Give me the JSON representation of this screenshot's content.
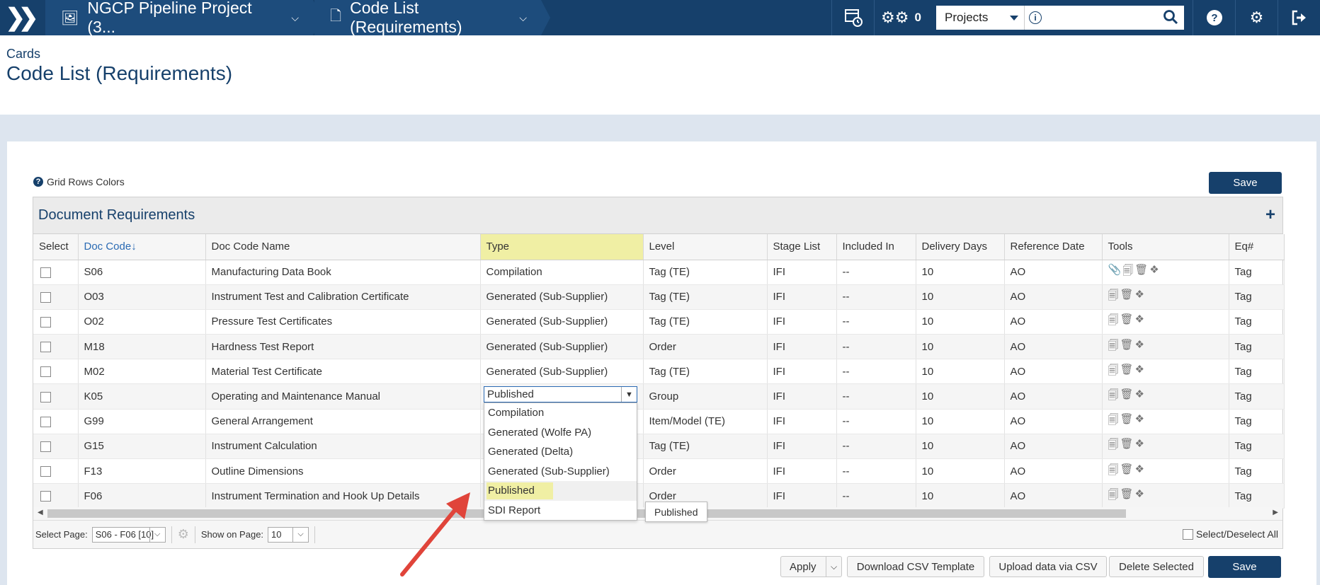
{
  "topbar": {
    "project": "NGCP Pipeline Project (3...",
    "page": "Code List (Requirements)",
    "notif_count": "0",
    "search_scope": "Projects",
    "search_placeholder": ""
  },
  "header": {
    "breadcrumb": "Cards",
    "title": "Code List (Requirements)"
  },
  "toolbar": {
    "grid_colors": "Grid Rows Colors",
    "save_label": "Save"
  },
  "grid": {
    "title": "Document Requirements",
    "columns": [
      "Select",
      "Doc Code↓",
      "Doc Code Name",
      "Type",
      "Level",
      "Stage List",
      "Included In",
      "Delivery Days",
      "Reference Date",
      "Tools",
      "Eq#"
    ],
    "rows": [
      {
        "code": "S06",
        "name": "Manufacturing Data Book",
        "type": "Compilation",
        "level": "Tag (TE)",
        "stage": "IFI",
        "included": "--",
        "days": "10",
        "ref": "AO",
        "eq": "Tag"
      },
      {
        "code": "O03",
        "name": "Instrument Test and Calibration Certificate",
        "type": "Generated (Sub-Supplier)",
        "level": "Tag (TE)",
        "stage": "IFI",
        "included": "--",
        "days": "10",
        "ref": "AO",
        "eq": "Tag"
      },
      {
        "code": "O02",
        "name": "Pressure Test Certificates",
        "type": "Generated (Sub-Supplier)",
        "level": "Tag (TE)",
        "stage": "IFI",
        "included": "--",
        "days": "10",
        "ref": "AO",
        "eq": "Tag"
      },
      {
        "code": "M18",
        "name": "Hardness Test Report",
        "type": "Generated (Sub-Supplier)",
        "level": "Order",
        "stage": "IFI",
        "included": "--",
        "days": "10",
        "ref": "AO",
        "eq": "Tag"
      },
      {
        "code": "M02",
        "name": "Material Test Certificate",
        "type": "Generated (Sub-Supplier)",
        "level": "Tag (TE)",
        "stage": "IFI",
        "included": "--",
        "days": "10",
        "ref": "AO",
        "eq": "Tag"
      },
      {
        "code": "K05",
        "name": "Operating and Maintenance Manual",
        "type": "",
        "level": "Group",
        "stage": "IFI",
        "included": "--",
        "days": "10",
        "ref": "AO",
        "eq": "Tag"
      },
      {
        "code": "G99",
        "name": "General Arrangement",
        "type": "",
        "level": "Item/Model (TE)",
        "stage": "IFI",
        "included": "--",
        "days": "10",
        "ref": "AO",
        "eq": "Tag"
      },
      {
        "code": "G15",
        "name": "Instrument Calculation",
        "type": "",
        "level": "Tag (TE)",
        "stage": "IFI",
        "included": "--",
        "days": "10",
        "ref": "AO",
        "eq": "Tag"
      },
      {
        "code": "F13",
        "name": "Outline Dimensions",
        "type": "",
        "level": "Order",
        "stage": "IFI",
        "included": "--",
        "days": "10",
        "ref": "AO",
        "eq": "Tag"
      },
      {
        "code": "F06",
        "name": "Instrument Termination and Hook Up Details",
        "type": "",
        "level": "Order",
        "stage": "IFI",
        "included": "--",
        "days": "10",
        "ref": "AO",
        "eq": "Tag"
      }
    ]
  },
  "type_dropdown": {
    "value": "Published",
    "options": [
      "Compilation",
      "Generated (Wolfe PA)",
      "Generated (Delta)",
      "Generated (Sub-Supplier)",
      "Published",
      "SDI Report"
    ],
    "tooltip": "Published"
  },
  "pager": {
    "select_page_label": "Select Page:",
    "select_page_value": "S06 - F06 [10]",
    "show_on_page_label": "Show on Page:",
    "show_on_page_value": "10",
    "select_all_label": "Select/Deselect All"
  },
  "actions": {
    "apply": "Apply",
    "download_csv": "Download CSV Template",
    "upload_csv": "Upload data via CSV",
    "delete_selected": "Delete Selected",
    "save": "Save"
  },
  "colors": {
    "navy": "#16406b",
    "highlight": "#f0efa4",
    "arrow": "#e0443a"
  }
}
